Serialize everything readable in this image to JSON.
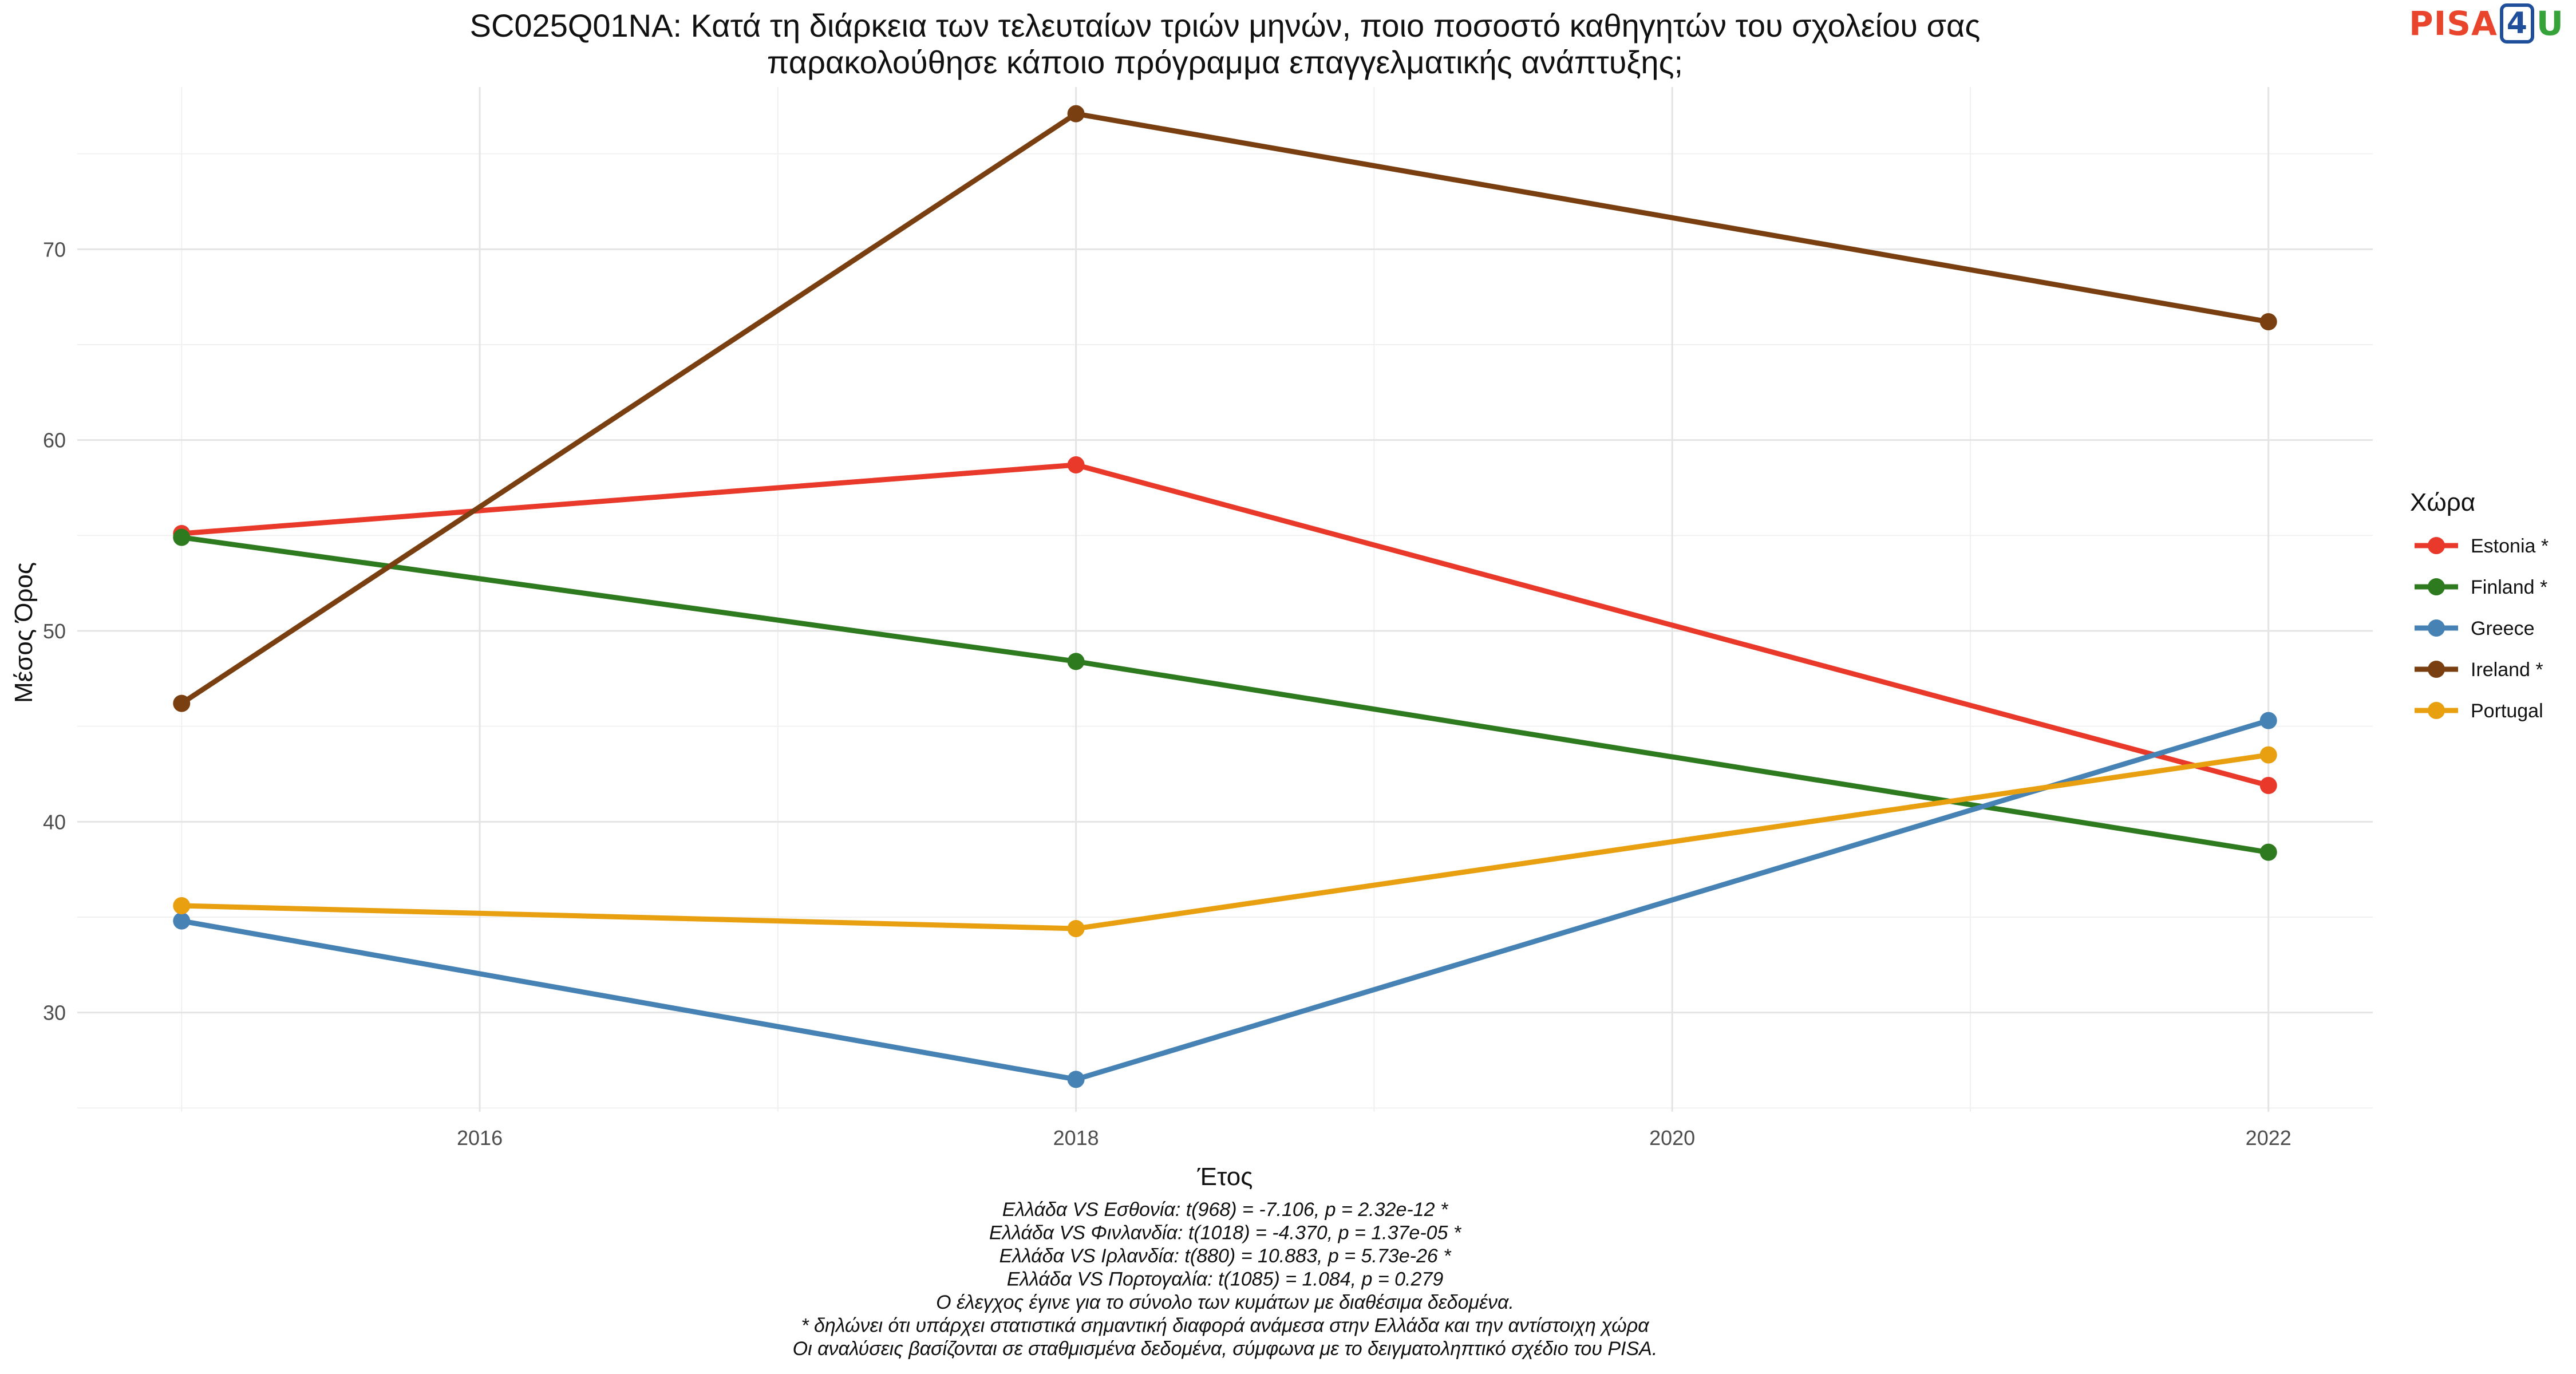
{
  "title_lines": [
    "SC025Q01NA: Κατά τη διάρκεια των τελευταίων τριών μηνών, ποιο ποσοστό καθηγητών του σχολείου σας",
    "παρακολούθησε κάποιο πρόγραμμα επαγγελματικής ανάπτυξης;"
  ],
  "logo": {
    "part1": "PISA",
    "part2": "4",
    "part3": "U"
  },
  "caption_lines": [
    "Ελλάδα VS Εσθονία: t(968) = -7.106, p = 2.32e-12 *",
    "Ελλάδα VS Φινλανδία: t(1018) = -4.370, p = 1.37e-05 *",
    "Ελλάδα VS Ιρλανδία: t(880) = 10.883, p = 5.73e-26 *",
    "Ελλάδα VS Πορτογαλία: t(1085) = 1.084, p = 0.279",
    "Ο έλεγχος έγινε για το σύνολο των κυμάτων με διαθέσιμα δεδομένα.",
    "* δηλώνει ότι υπάρχει στατιστικά σημαντική διαφορά ανάμεσα στην Ελλάδα και την αντίστοιχη χώρα",
    "Οι αναλύσεις βασίζονται σε σταθμισμένα δεδομένα, σύμφωνα με το δειγματοληπτικό σχέδιο του PISA."
  ],
  "chart_data": {
    "type": "line",
    "xlabel": "Έτος",
    "ylabel": "Μέσος Όρος",
    "x": [
      2015,
      2018,
      2022
    ],
    "xlim": [
      2014.65,
      2022.35
    ],
    "ylim": [
      24.8,
      78.5
    ],
    "xticks": [
      2016,
      2018,
      2020,
      2022
    ],
    "yticks": [
      30,
      40,
      50,
      60,
      70
    ],
    "grid": true,
    "legend_title": "Χώρα",
    "legend_position": "right",
    "series": [
      {
        "name": "Estonia *",
        "color": "#e8392a",
        "values": [
          55.1,
          58.7,
          41.9
        ]
      },
      {
        "name": "Finland *",
        "color": "#2e7a1f",
        "values": [
          54.9,
          48.4,
          38.4
        ]
      },
      {
        "name": "Greece",
        "color": "#4682b4",
        "values": [
          34.8,
          26.5,
          45.3
        ]
      },
      {
        "name": "Ireland *",
        "color": "#7a3f10",
        "values": [
          46.2,
          77.1,
          66.2
        ]
      },
      {
        "name": "Portugal",
        "color": "#e8a010",
        "values": [
          35.6,
          34.4,
          43.5
        ]
      }
    ]
  }
}
